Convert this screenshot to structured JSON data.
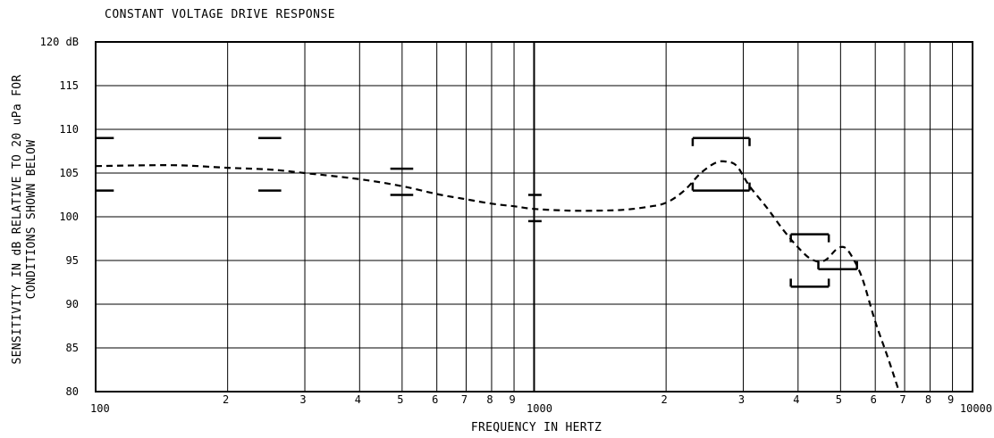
{
  "chart_data": {
    "type": "line",
    "title": "CONSTANT VOLTAGE DRIVE RESPONSE",
    "xlabel": "FREQUENCY IN HERTZ",
    "ylabel_line1": "SENSITIVITY IN dB RELATIVE TO 20 uPa FOR",
    "ylabel_line2": "CONDITIONS SHOWN BELOW",
    "x_scale": "log",
    "xlim": [
      100,
      10000
    ],
    "ylim": [
      80,
      120
    ],
    "grid": true,
    "y_ticks": [
      {
        "value": 120,
        "label": "120 dB"
      },
      {
        "value": 115,
        "label": "115"
      },
      {
        "value": 110,
        "label": "110"
      },
      {
        "value": 105,
        "label": "105"
      },
      {
        "value": 100,
        "label": "100"
      },
      {
        "value": 95,
        "label": "95"
      },
      {
        "value": 90,
        "label": "90"
      },
      {
        "value": 85,
        "label": "85"
      },
      {
        "value": 80,
        "label": "80"
      }
    ],
    "x_ticks": [
      {
        "value": 100,
        "label": "100",
        "major": true
      },
      {
        "value": 200,
        "label": "2"
      },
      {
        "value": 300,
        "label": "3"
      },
      {
        "value": 400,
        "label": "4"
      },
      {
        "value": 500,
        "label": "5"
      },
      {
        "value": 600,
        "label": "6"
      },
      {
        "value": 700,
        "label": "7"
      },
      {
        "value": 800,
        "label": "8"
      },
      {
        "value": 900,
        "label": "9"
      },
      {
        "value": 1000,
        "label": "1000",
        "major": true
      },
      {
        "value": 2000,
        "label": "2"
      },
      {
        "value": 3000,
        "label": "3"
      },
      {
        "value": 4000,
        "label": "4"
      },
      {
        "value": 5000,
        "label": "5"
      },
      {
        "value": 6000,
        "label": "6"
      },
      {
        "value": 7000,
        "label": "7"
      },
      {
        "value": 8000,
        "label": "8"
      },
      {
        "value": 9000,
        "label": "9"
      },
      {
        "value": 10000,
        "label": "10000",
        "major": true
      }
    ],
    "series": [
      {
        "style": "dashed",
        "points": [
          [
            100,
            105.8
          ],
          [
            150,
            105.9
          ],
          [
            200,
            105.6
          ],
          [
            250,
            105.4
          ],
          [
            300,
            105.0
          ],
          [
            400,
            104.3
          ],
          [
            500,
            103.5
          ],
          [
            600,
            102.6
          ],
          [
            700,
            102.0
          ],
          [
            800,
            101.5
          ],
          [
            900,
            101.2
          ],
          [
            1000,
            100.9
          ],
          [
            1200,
            100.7
          ],
          [
            1400,
            100.7
          ],
          [
            1600,
            100.8
          ],
          [
            1800,
            101.1
          ],
          [
            2000,
            101.6
          ],
          [
            2200,
            103.0
          ],
          [
            2400,
            105.0
          ],
          [
            2600,
            106.2
          ],
          [
            2750,
            106.3
          ],
          [
            2900,
            105.8
          ],
          [
            3100,
            103.5
          ],
          [
            3400,
            101.0
          ],
          [
            3700,
            98.5
          ],
          [
            4000,
            96.5
          ],
          [
            4300,
            95.1
          ],
          [
            4600,
            95.0
          ],
          [
            4900,
            96.3
          ],
          [
            5100,
            96.5
          ],
          [
            5300,
            95.5
          ],
          [
            5600,
            93.0
          ],
          [
            6000,
            88.0
          ],
          [
            6400,
            84.0
          ],
          [
            6800,
            80.0
          ]
        ]
      }
    ],
    "tolerance_brackets": [
      {
        "x_start": 100,
        "x_end": 110,
        "upper": 109,
        "lower": 103
      },
      {
        "x_start": 235,
        "x_end": 265,
        "upper": 109,
        "lower": 103
      },
      {
        "x_start": 470,
        "x_end": 530,
        "upper": 105.5,
        "lower": 102.5
      },
      {
        "x_start": 970,
        "x_end": 1040,
        "upper": 102.5,
        "lower": 99.5
      },
      {
        "x_start": 2300,
        "x_end": 3100,
        "upper": 109,
        "lower": 103
      },
      {
        "x_start": 3850,
        "x_end": 4700,
        "upper": 98,
        "lower": 92
      },
      {
        "x_start": 4450,
        "x_end": 5450,
        "upper": null,
        "lower": 94
      }
    ]
  }
}
